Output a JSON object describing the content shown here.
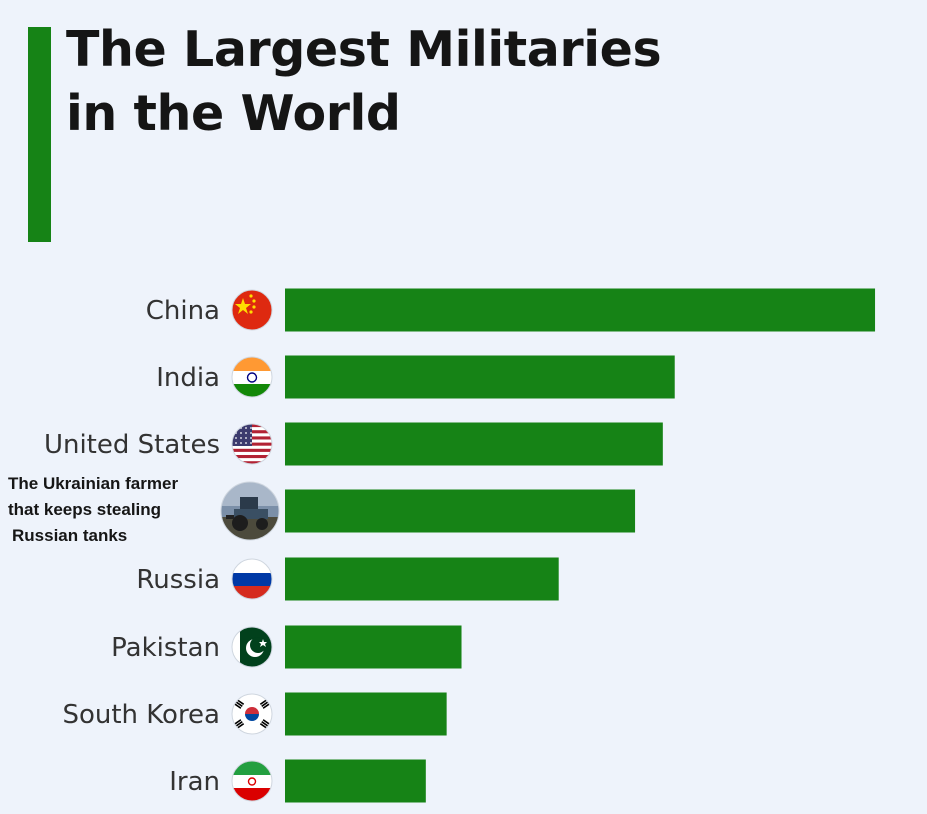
{
  "title_line1": "The Largest Militaries",
  "title_line2": "in the World",
  "colors": {
    "bar": "#168316",
    "accent_bar": "#168316",
    "background": "#eef3fb"
  },
  "chart_data": {
    "type": "bar",
    "orientation": "horizontal",
    "title": "The Largest Militaries in the World",
    "categories": [
      "China",
      "India",
      "United States",
      "The Ukrainian farmer that keeps stealing Russian tanks",
      "Russia",
      "Pakistan",
      "South Korea",
      "Iran"
    ],
    "category_lines": [
      [
        "China"
      ],
      [
        "India"
      ],
      [
        "United States"
      ],
      [
        "The Ukrainian farmer",
        "that keeps stealing",
        "Russian tanks"
      ],
      [
        "Russia"
      ],
      [
        "Pakistan"
      ],
      [
        "South Korea"
      ],
      [
        "Iran"
      ]
    ],
    "icons": [
      "china-flag-icon",
      "india-flag-icon",
      "us-flag-icon",
      "tractor-photo-icon",
      "russia-flag-icon",
      "pakistan-flag-icon",
      "south-korea-flag-icon",
      "iran-flag-icon"
    ],
    "values": [
      595,
      393,
      381,
      353,
      276,
      178,
      163,
      142
    ],
    "value_note": "bar lengths in relative units; no axis or value labels shown",
    "xlim": [
      0,
      600
    ],
    "grid": false,
    "legend": "none"
  }
}
